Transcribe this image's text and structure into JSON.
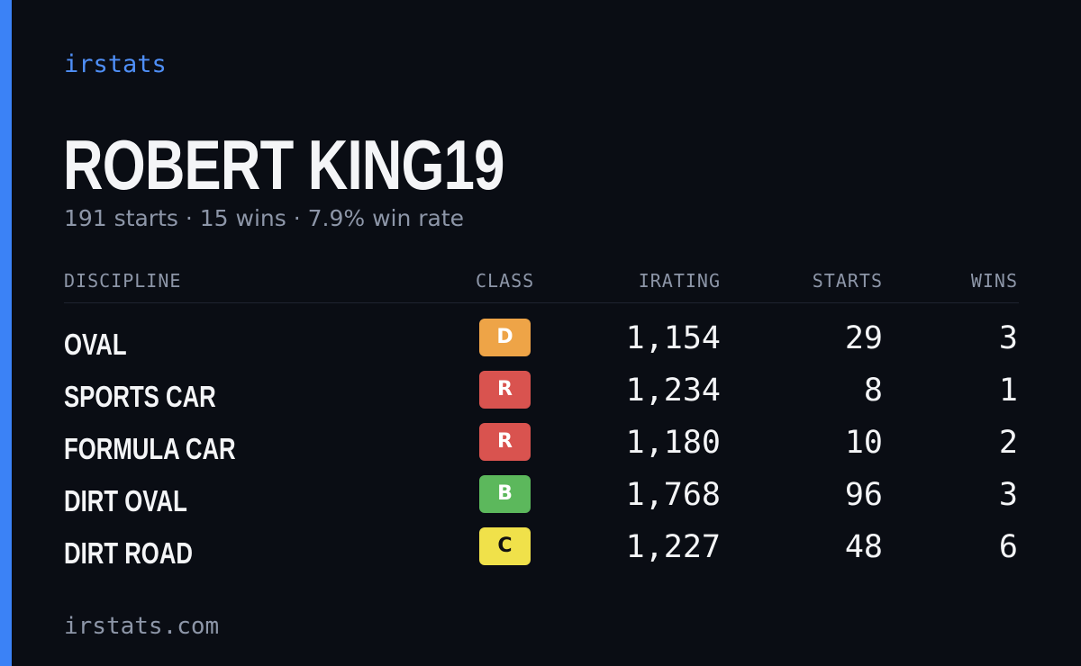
{
  "brand": "irstats",
  "profile": {
    "name": "ROBERT KING19",
    "summary": "191 starts · 15 wins · 7.9% win rate"
  },
  "table": {
    "headers": {
      "discipline": "DISCIPLINE",
      "class": "CLASS",
      "irating": "IRATING",
      "starts": "STARTS",
      "wins": "WINS"
    },
    "rows": [
      {
        "discipline": "OVAL",
        "class": "D",
        "irating": "1,154",
        "starts": "29",
        "wins": "3"
      },
      {
        "discipline": "SPORTS CAR",
        "class": "R",
        "irating": "1,234",
        "starts": "8",
        "wins": "1"
      },
      {
        "discipline": "FORMULA CAR",
        "class": "R",
        "irating": "1,180",
        "starts": "10",
        "wins": "2"
      },
      {
        "discipline": "DIRT OVAL",
        "class": "B",
        "irating": "1,768",
        "starts": "96",
        "wins": "3"
      },
      {
        "discipline": "DIRT ROAD",
        "class": "C",
        "irating": "1,227",
        "starts": "48",
        "wins": "6"
      }
    ]
  },
  "footer": "irstats.com",
  "colors": {
    "background": "#0a0d14",
    "accent": "#3b82f6",
    "class_colors": {
      "D": {
        "bg": "#eea447",
        "fg": "#ffffff"
      },
      "R": {
        "bg": "#d9534f",
        "fg": "#ffffff"
      },
      "B": {
        "bg": "#5cb85c",
        "fg": "#ffffff"
      },
      "C": {
        "bg": "#f0e14a",
        "fg": "#111111"
      }
    }
  }
}
